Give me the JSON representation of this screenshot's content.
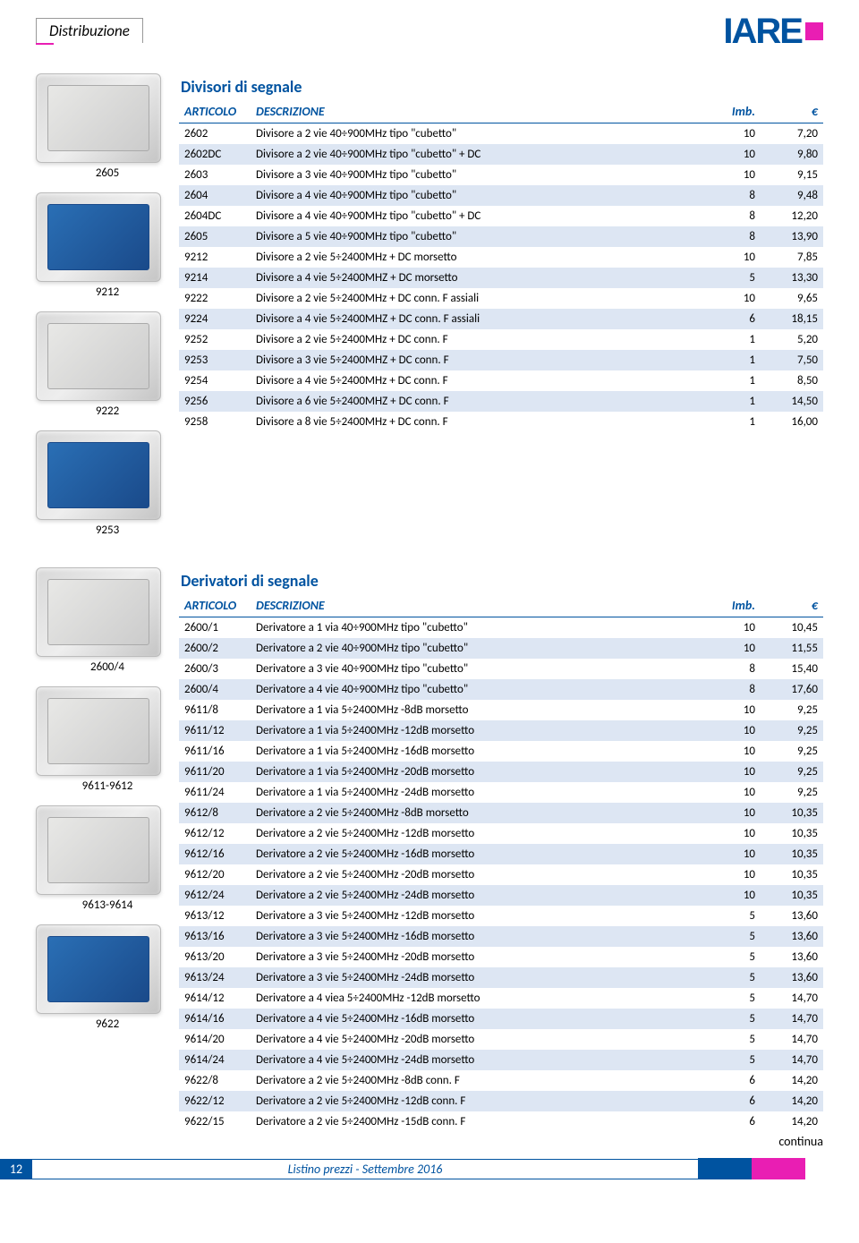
{
  "header": {
    "tab": "Distribuzione",
    "logo_text": "IARE",
    "logo_color": "#0053a0",
    "accent_color": "#e91eb3"
  },
  "images": [
    {
      "label": "2605",
      "variant": "metal"
    },
    {
      "label": "9212",
      "variant": "blue"
    },
    {
      "label": "9222",
      "variant": "metal"
    },
    {
      "label": "9253",
      "variant": "blue"
    }
  ],
  "images2": [
    {
      "label": "2600/4",
      "variant": "metal"
    },
    {
      "label": "9611-9612",
      "variant": "metal"
    },
    {
      "label": "9613-9614",
      "variant": "metal"
    },
    {
      "label": "9622",
      "variant": "blue"
    }
  ],
  "table1": {
    "title": "Divisori di segnale",
    "columns": {
      "art": "ARTICOLO",
      "desc": "DESCRIZIONE",
      "imb": "Imb.",
      "eur": "€"
    },
    "rows": [
      {
        "art": "2602",
        "desc": "Divisore a 2 vie 40÷900MHz tipo \"cubetto\"",
        "imb": "10",
        "eur": "7,20"
      },
      {
        "art": "2602DC",
        "desc": "Divisore a 2 vie 40÷900MHz tipo \"cubetto\" + DC",
        "imb": "10",
        "eur": "9,80",
        "shade": true
      },
      {
        "art": "2603",
        "desc": "Divisore a 3 vie 40÷900MHz tipo \"cubetto\"",
        "imb": "10",
        "eur": "9,15"
      },
      {
        "art": "2604",
        "desc": "Divisore a 4 vie 40÷900MHz tipo \"cubetto\"",
        "imb": "8",
        "eur": "9,48",
        "shade": true
      },
      {
        "art": "2604DC",
        "desc": "Divisore a 4 vie 40÷900MHz tipo \"cubetto\" + DC",
        "imb": "8",
        "eur": "12,20"
      },
      {
        "art": "2605",
        "desc": "Divisore a 5 vie 40÷900MHz tipo \"cubetto\"",
        "imb": "8",
        "eur": "13,90",
        "shade": true
      },
      {
        "art": "9212",
        "desc": "Divisore a 2 vie 5÷2400MHz + DC morsetto",
        "imb": "10",
        "eur": "7,85"
      },
      {
        "art": "9214",
        "desc": "Divisore a 4 vie 5÷2400MHZ + DC morsetto",
        "imb": "5",
        "eur": "13,30",
        "shade": true
      },
      {
        "art": "9222",
        "desc": "Divisore a 2 vie 5÷2400MHz + DC conn. F assiali",
        "imb": "10",
        "eur": "9,65"
      },
      {
        "art": "9224",
        "desc": "Divisore a 4 vie 5÷2400MHZ + DC conn. F assiali",
        "imb": "6",
        "eur": "18,15",
        "shade": true
      },
      {
        "art": "9252",
        "desc": "Divisore a 2 vie 5÷2400MHz + DC conn. F",
        "imb": "1",
        "eur": "5,20"
      },
      {
        "art": "9253",
        "desc": "Divisore a 3 vie 5÷2400MHZ + DC conn. F",
        "imb": "1",
        "eur": "7,50",
        "shade": true
      },
      {
        "art": "9254",
        "desc": "Divisore a 4 vie 5÷2400MHz + DC conn. F",
        "imb": "1",
        "eur": "8,50"
      },
      {
        "art": "9256",
        "desc": "Divisore a 6 vie 5÷2400MHZ + DC conn. F",
        "imb": "1",
        "eur": "14,50",
        "shade": true
      },
      {
        "art": "9258",
        "desc": "Divisore a 8 vie 5÷2400MHz + DC conn. F",
        "imb": "1",
        "eur": "16,00"
      }
    ]
  },
  "table2": {
    "title": "Derivatori di segnale",
    "columns": {
      "art": "ARTICOLO",
      "desc": "DESCRIZIONE",
      "imb": "Imb.",
      "eur": "€"
    },
    "rows": [
      {
        "art": "2600/1",
        "desc": "Derivatore a 1 via 40÷900MHz tipo \"cubetto\"",
        "imb": "10",
        "eur": "10,45"
      },
      {
        "art": "2600/2",
        "desc": "Derivatore a 2 vie 40÷900MHz tipo \"cubetto\"",
        "imb": "10",
        "eur": "11,55",
        "shade": true
      },
      {
        "art": "2600/3",
        "desc": "Derivatore a 3 vie 40÷900MHz tipo \"cubetto\"",
        "imb": "8",
        "eur": "15,40"
      },
      {
        "art": "2600/4",
        "desc": "Derivatore a 4 vie 40÷900MHz tipo \"cubetto\"",
        "imb": "8",
        "eur": "17,60",
        "shade": true
      },
      {
        "art": "9611/8",
        "desc": "Derivatore a 1 via 5÷2400MHz -8dB morsetto",
        "imb": "10",
        "eur": "9,25"
      },
      {
        "art": "9611/12",
        "desc": "Derivatore a 1 via 5÷2400MHz -12dB morsetto",
        "imb": "10",
        "eur": "9,25",
        "shade": true
      },
      {
        "art": "9611/16",
        "desc": "Derivatore a 1 via 5÷2400MHz -16dB morsetto",
        "imb": "10",
        "eur": "9,25"
      },
      {
        "art": "9611/20",
        "desc": "Derivatore a 1 via 5÷2400MHz -20dB morsetto",
        "imb": "10",
        "eur": "9,25",
        "shade": true
      },
      {
        "art": "9611/24",
        "desc": "Derivatore a 1 via 5÷2400MHz -24dB morsetto",
        "imb": "10",
        "eur": "9,25"
      },
      {
        "art": "9612/8",
        "desc": "Derivatore a 2 vie 5÷2400MHz -8dB morsetto",
        "imb": "10",
        "eur": "10,35",
        "shade": true
      },
      {
        "art": "9612/12",
        "desc": "Derivatore a 2 vie 5÷2400MHz -12dB morsetto",
        "imb": "10",
        "eur": "10,35"
      },
      {
        "art": "9612/16",
        "desc": "Derivatore a 2 vie 5÷2400MHz -16dB morsetto",
        "imb": "10",
        "eur": "10,35",
        "shade": true
      },
      {
        "art": "9612/20",
        "desc": "Derivatore a 2 vie 5÷2400MHz -20dB morsetto",
        "imb": "10",
        "eur": "10,35"
      },
      {
        "art": "9612/24",
        "desc": "Derivatore a 2 vie 5÷2400MHz -24dB morsetto",
        "imb": "10",
        "eur": "10,35",
        "shade": true
      },
      {
        "art": "9613/12",
        "desc": "Derivatore a 3 vie 5÷2400MHz -12dB morsetto",
        "imb": "5",
        "eur": "13,60"
      },
      {
        "art": "9613/16",
        "desc": "Derivatore a 3 vie 5÷2400MHz -16dB morsetto",
        "imb": "5",
        "eur": "13,60",
        "shade": true
      },
      {
        "art": "9613/20",
        "desc": "Derivatore a 3 vie 5÷2400MHz -20dB morsetto",
        "imb": "5",
        "eur": "13,60"
      },
      {
        "art": "9613/24",
        "desc": "Derivatore a 3 vie 5÷2400MHz -24dB morsetto",
        "imb": "5",
        "eur": "13,60",
        "shade": true
      },
      {
        "art": "9614/12",
        "desc": "Derivatore a 4 viea 5÷2400MHz -12dB morsetto",
        "imb": "5",
        "eur": "14,70"
      },
      {
        "art": "9614/16",
        "desc": "Derivatore a 4 vie 5÷2400MHz -16dB morsetto",
        "imb": "5",
        "eur": "14,70",
        "shade": true
      },
      {
        "art": "9614/20",
        "desc": "Derivatore a 4 vie 5÷2400MHz -20dB morsetto",
        "imb": "5",
        "eur": "14,70"
      },
      {
        "art": "9614/24",
        "desc": "Derivatore a 4 vie 5÷2400MHz -24dB morsetto",
        "imb": "5",
        "eur": "14,70",
        "shade": true
      },
      {
        "art": "9622/8",
        "desc": "Derivatore a 2 vie 5÷2400MHz -8dB conn. F",
        "imb": "6",
        "eur": "14,20"
      },
      {
        "art": "9622/12",
        "desc": "Derivatore a 2 vie 5÷2400MHz -12dB conn. F",
        "imb": "6",
        "eur": "14,20",
        "shade": true
      },
      {
        "art": "9622/15",
        "desc": "Derivatore a 2 vie 5÷2400MHz -15dB conn. F",
        "imb": "6",
        "eur": "14,20"
      }
    ]
  },
  "continua": "continua",
  "footer": {
    "page": "12",
    "title": "Listino prezzi - Settembre 2016",
    "stripe_colors": [
      "#0053a0",
      "#e91eb3",
      "#ffffff"
    ]
  }
}
